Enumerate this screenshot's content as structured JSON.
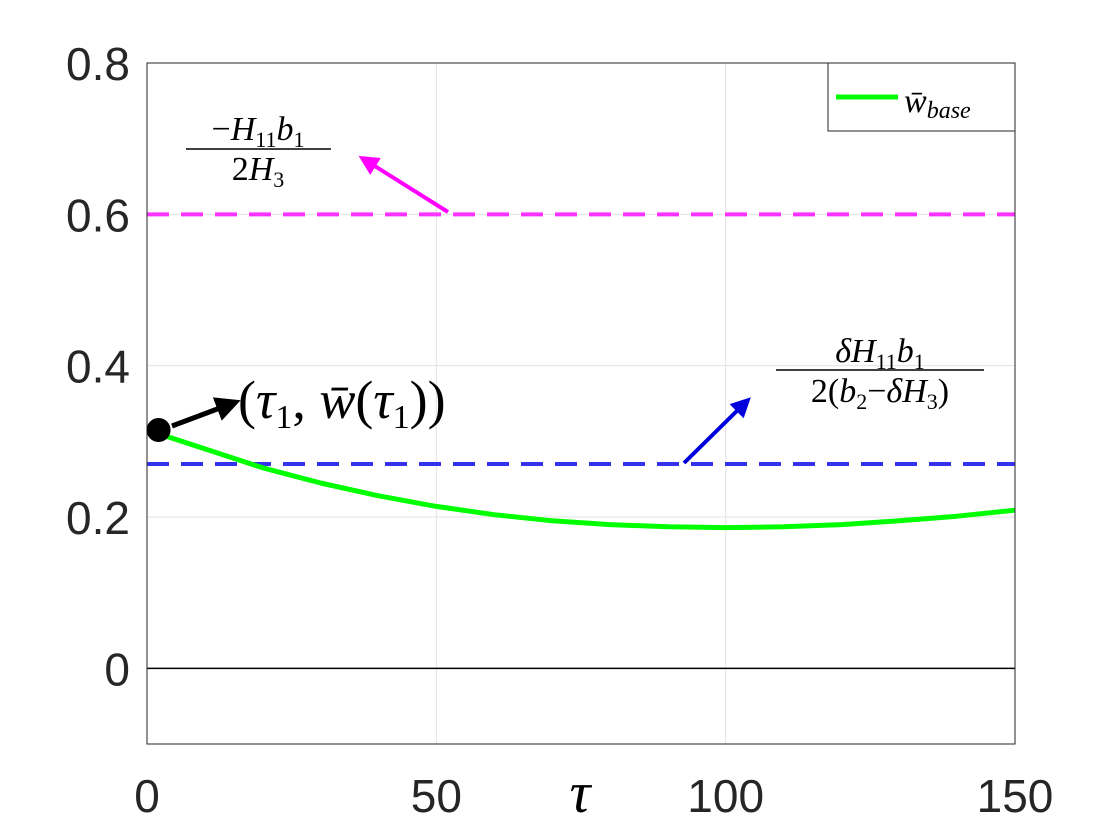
{
  "chart_data": {
    "type": "line",
    "xlabel": "τ",
    "ylabel": "",
    "xlim": [
      0,
      150
    ],
    "ylim": [
      -0.1,
      0.8
    ],
    "xticks": [
      0,
      50,
      100,
      150
    ],
    "yticks": [
      0,
      0.2,
      0.4,
      0.6,
      0.8
    ],
    "xtick_labels": [
      "0",
      "50",
      "100",
      "150"
    ],
    "ytick_labels": [
      "0",
      "0.2",
      "0.4",
      "0.6",
      "0.8"
    ],
    "grid": true,
    "legend_position": "top-right",
    "series": [
      {
        "name": "w̄_base",
        "color": "#00ff00",
        "x": [
          2,
          10,
          20,
          30,
          40,
          50,
          60,
          70,
          80,
          90,
          100,
          110,
          120,
          130,
          140,
          150
        ],
        "y": [
          0.31,
          0.29,
          0.265,
          0.245,
          0.228,
          0.214,
          0.203,
          0.195,
          0.19,
          0.187,
          0.186,
          0.187,
          0.19,
          0.195,
          0.201,
          0.209
        ]
      }
    ],
    "reference_lines": [
      {
        "label": "−H₁₁b₁ / 2H₃",
        "y": 0.6,
        "color": "#ff33ff",
        "style": "dashed"
      },
      {
        "label": "δH₁₁b₁ / 2(b₂−δH₃)",
        "y": 0.27,
        "color": "#3333ee",
        "style": "dashed"
      },
      {
        "label": "",
        "y": 0,
        "color": "#000000",
        "style": "solid"
      }
    ],
    "annotations": [
      {
        "text": "(τ₁, w̄(τ₁))",
        "point": [
          2,
          0.315
        ],
        "marker_color": "#000000"
      }
    ]
  }
}
